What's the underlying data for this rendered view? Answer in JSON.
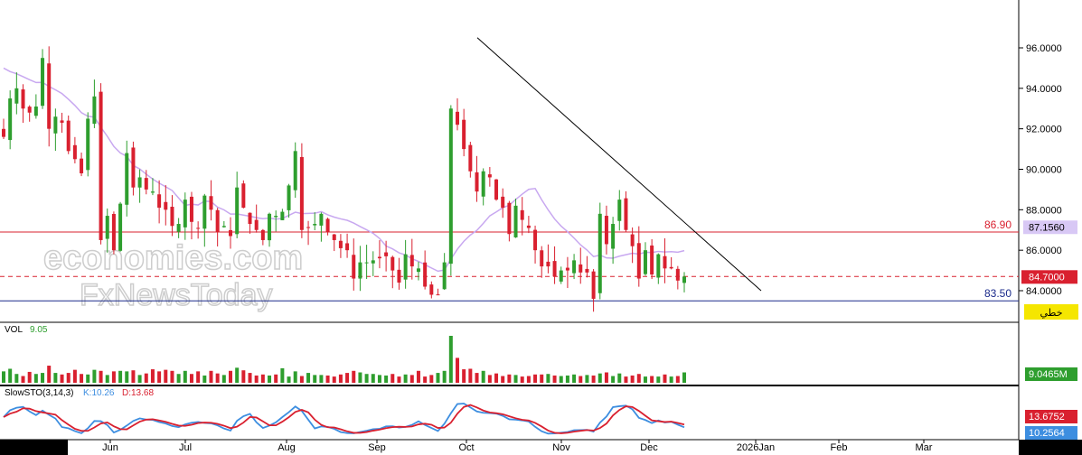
{
  "colors": {
    "plot_bg": "#ffffff",
    "frame": "#000000",
    "up": "#2e9e2e",
    "down": "#d9202f",
    "ma": "#c8a8f0",
    "trend": "#000000",
    "resistance": "#d9202f",
    "support": "#1a2a8a",
    "k_line": "#3d8ee0",
    "d_line": "#d9202f",
    "tick": "#000000",
    "sto_tag_bg": "#d9202f",
    "k_tag_bg": "#3d8ee0",
    "ma_tag_bg": "#d8c8f5",
    "vol_tag_bg": "#2e9e2e",
    "mode_tag_bg": "#f5e600"
  },
  "watermark": {
    "line1": "economies.com",
    "line2": "FxNewsToday"
  },
  "chart_data": [
    {
      "type": "candlestick",
      "name": "price",
      "x_ticks": [
        "Jun",
        "Jul",
        "Aug",
        "Sep",
        "Oct",
        "Nov",
        "Dec",
        "2026Jan",
        "Feb",
        "Mar"
      ],
      "y_ticks": [
        "96.0000",
        "94.0000",
        "92.0000",
        "90.0000",
        "88.0000",
        "86.0000",
        "84.0000"
      ],
      "ylim": [
        83.0,
        97.0
      ],
      "last_price": 84.7,
      "last_price_label": "84.7000",
      "moving_average": {
        "value": 87.156,
        "label": "87.1560"
      },
      "resistance": {
        "value": 86.9,
        "label": "86.90"
      },
      "support": {
        "value": 83.5,
        "label": "83.50"
      },
      "trendline": {
        "from": {
          "date": "Oct",
          "value": 96.5
        },
        "to": {
          "date": "Dec",
          "value": 84.0
        }
      },
      "mode_label": "خطي",
      "closes": [
        91.6,
        93.5,
        94.0,
        93.0,
        92.8,
        93.1,
        95.5,
        92.0,
        92.6,
        92.3,
        90.9,
        90.5,
        89.8,
        92.5,
        93.6,
        86.5,
        87.7,
        86.0,
        88.3,
        90.8,
        89.1,
        89.6,
        89.0,
        88.9,
        88.1,
        88.0,
        87.2,
        87.3,
        88.5,
        87.4,
        87.1,
        88.7,
        88.0,
        86.9,
        87.2,
        86.7,
        89.1,
        88.1,
        87.3,
        87.0,
        86.5,
        87.8,
        87.7,
        87.9,
        89.2,
        90.9,
        87.0,
        87.1,
        87.3,
        87.8,
        86.9,
        86.5,
        86.1,
        86.0,
        84.6,
        85.4,
        85.4,
        85.5,
        85.6,
        85.7,
        85.0,
        84.4,
        85.8,
        85.2,
        85.1,
        84.2,
        83.8,
        83.8,
        85.4,
        93.0,
        92.2,
        91.0,
        89.9,
        88.9,
        89.9,
        89.6,
        88.5,
        88.1,
        86.8,
        88.2,
        87.5,
        87.1,
        86.0,
        85.2,
        85.2,
        84.7,
        85.0,
        85.0,
        85.5,
        84.9,
        84.9,
        83.6,
        87.8,
        86.3,
        87.3,
        88.5,
        87.0,
        86.2,
        84.6,
        86.0,
        84.8,
        85.8,
        85.1,
        85.1,
        84.5,
        84.7
      ],
      "volume_label": "VOL",
      "volume_value": "9.05",
      "volume_tag": "9.0465M",
      "volumes": [
        2.2,
        2.7,
        1.7,
        1.3,
        2.1,
        1.7,
        1.9,
        3.3,
        1.9,
        1.6,
        1.9,
        2.5,
        1.7,
        1.6,
        2.5,
        2.3,
        1.5,
        2.2,
        2.3,
        2.2,
        2.4,
        1.5,
        1.8,
        2.6,
        2.2,
        2.5,
        2.3,
        1.7,
        2.3,
        1.7,
        2.2,
        1.4,
        2.3,
        1.8,
        1.5,
        2.3,
        2.9,
        2.4,
        1.9,
        1.4,
        1.6,
        1.4,
        1.6,
        2.8,
        1.2,
        2.2,
        1.3,
        1.9,
        1.5,
        1.5,
        1.4,
        1.2,
        1.6,
        1.9,
        2.3,
        2.0,
        1.7,
        1.7,
        1.5,
        1.4,
        1.7,
        1.2,
        1.6,
        1.5,
        2.3,
        1.2,
        1.5,
        1.9,
        2.3,
        9.05,
        4.8,
        2.6,
        2.7,
        1.9,
        2.3,
        1.5,
        1.8,
        1.3,
        1.6,
        1.5,
        1.2,
        1.3,
        1.6,
        1.6,
        1.7,
        1.4,
        1.3,
        1.4,
        1.6,
        1.3,
        1.5,
        1.4,
        1.8,
        2.0,
        1.3,
        1.8,
        1.2,
        1.4,
        1.7,
        1.2,
        1.3,
        1.2,
        1.6,
        1.2,
        1.3,
        2.0
      ],
      "sto_label": "SlowSTO(3,14,3)",
      "k_label": "K:10.26",
      "d_label": "D:13.68",
      "d_tag": "13.6752",
      "k_tag": "10.2564"
    }
  ]
}
